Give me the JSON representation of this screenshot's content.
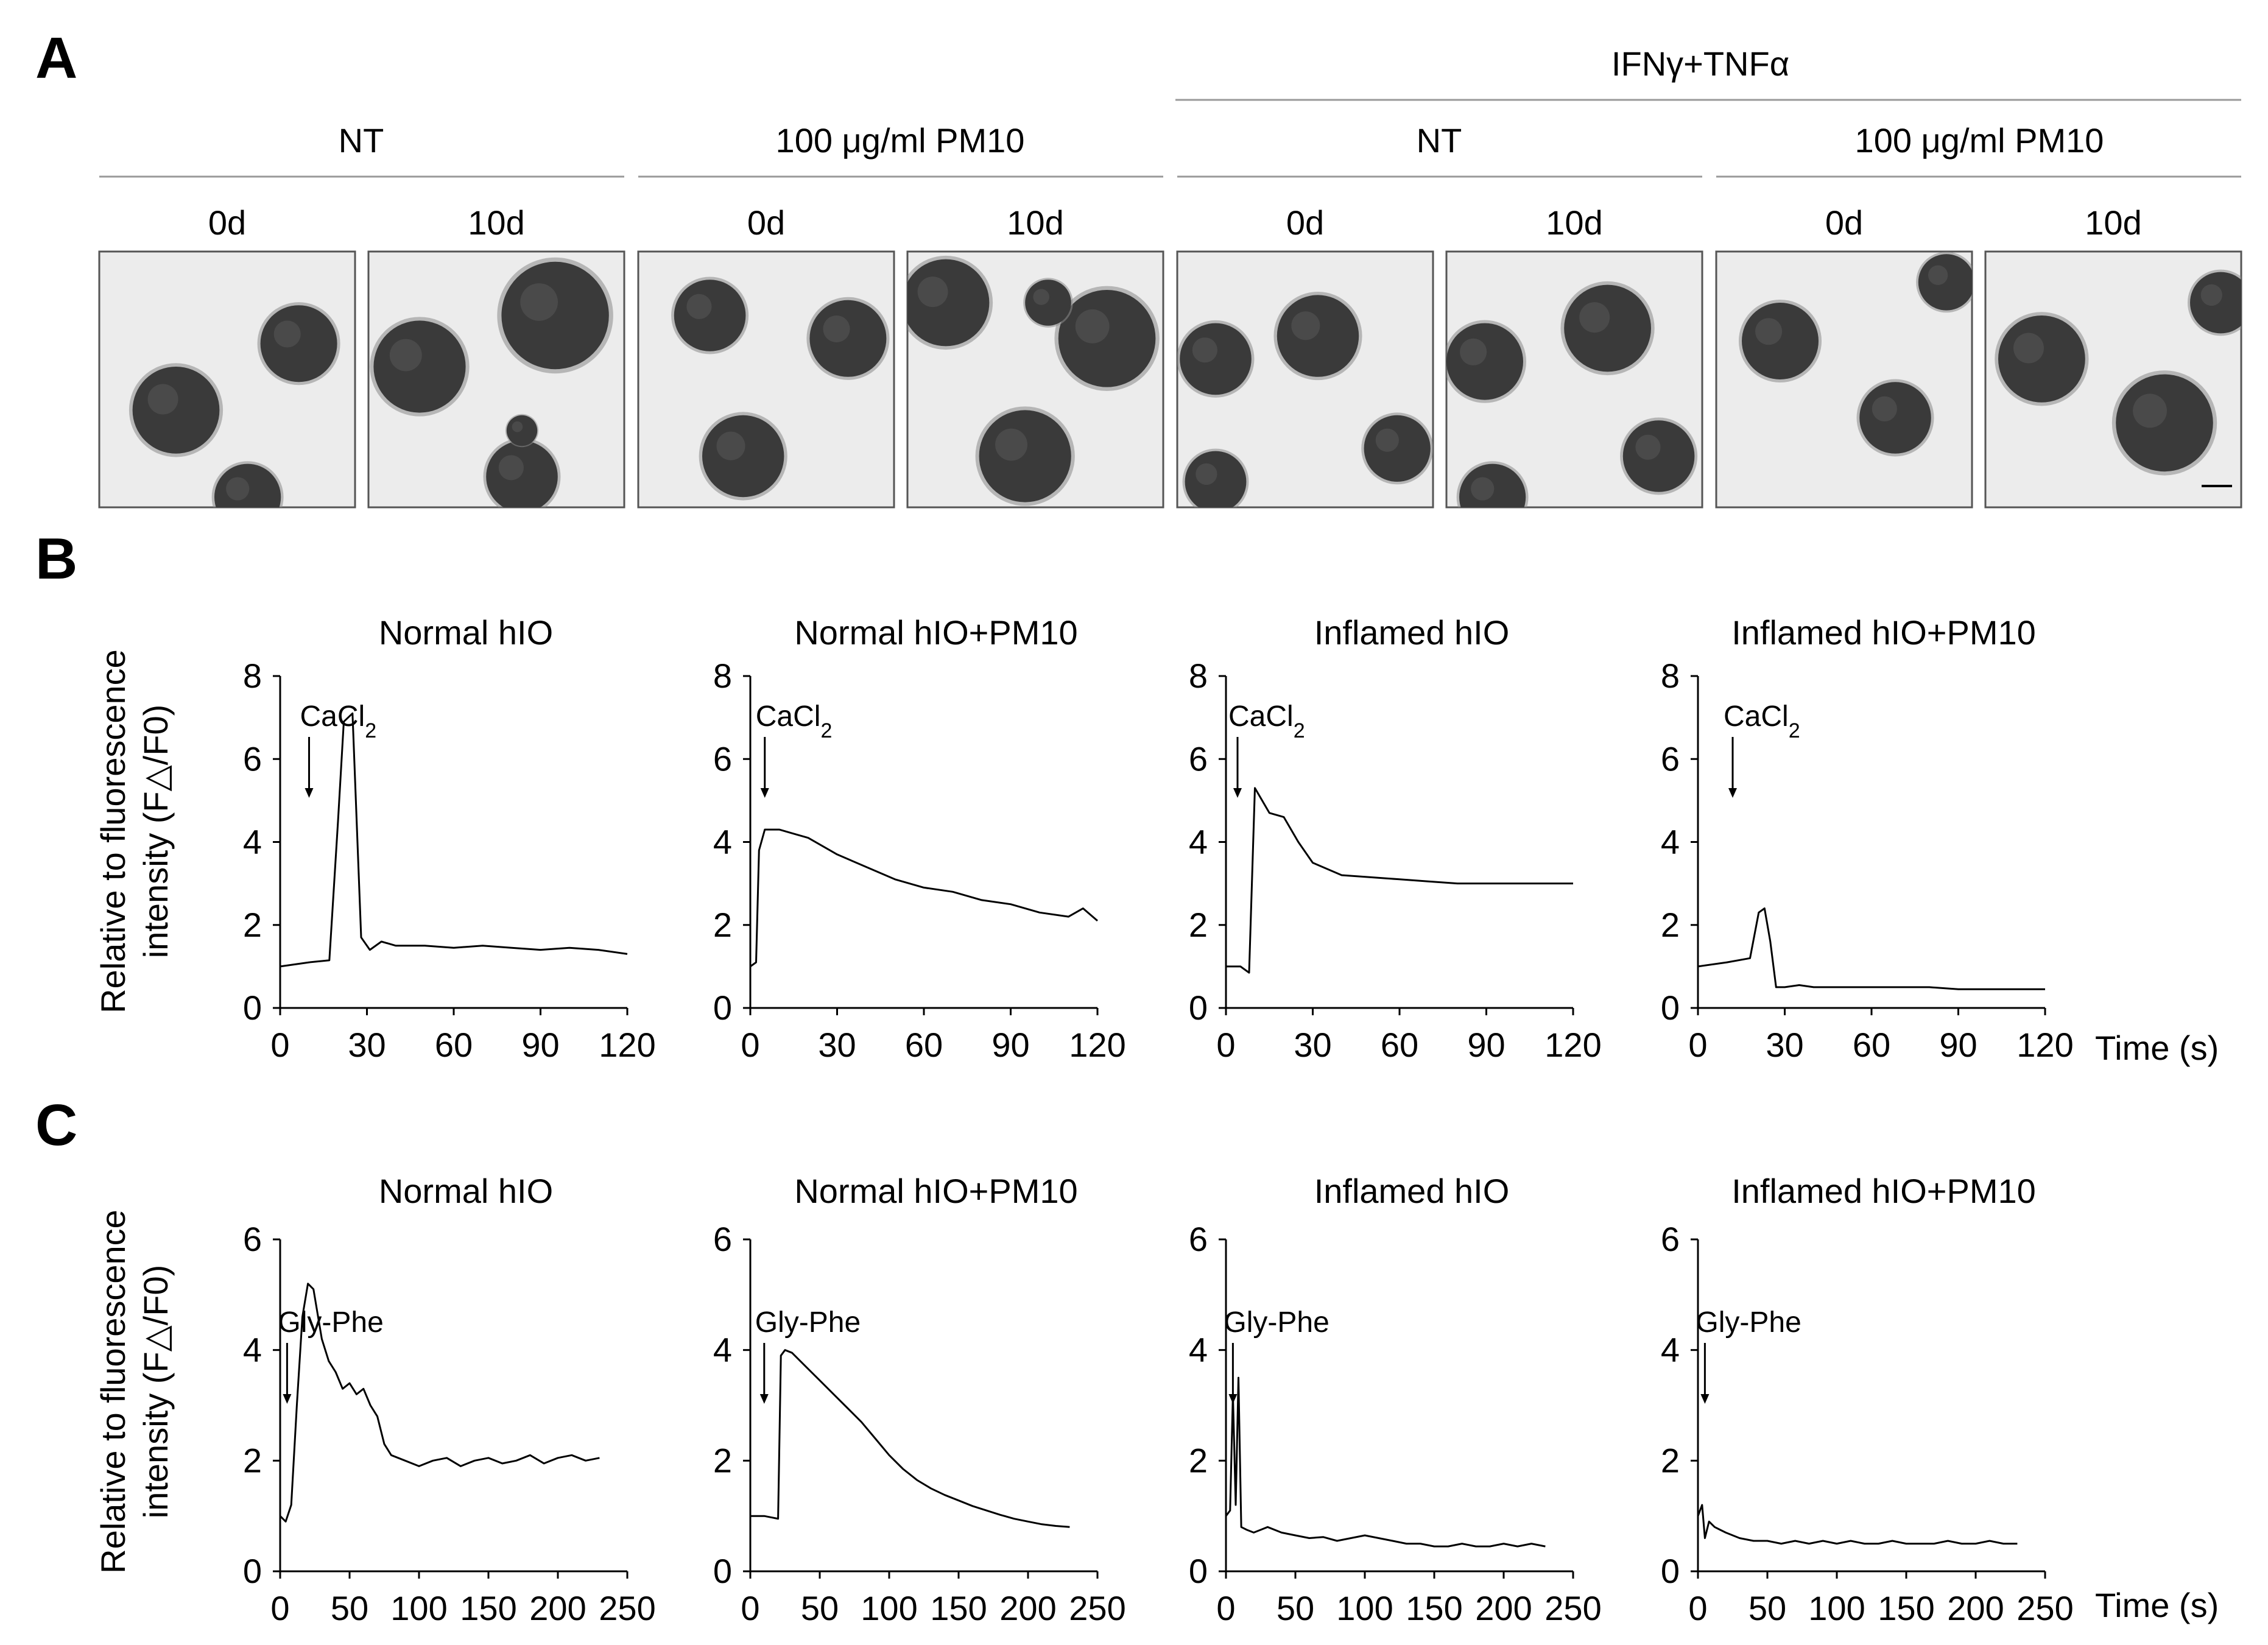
{
  "panels": {
    "A": "A",
    "B": "B",
    "C": "C"
  },
  "panel_a": {
    "treatment_group": "IFNγ+TNFα",
    "conditions": [
      "NT",
      "100 μg/ml PM10",
      "NT",
      "100 μg/ml PM10"
    ],
    "timepoints": [
      "0d",
      "10d",
      "0d",
      "10d",
      "0d",
      "10d",
      "0d",
      "10d"
    ],
    "image_background": "#ececec",
    "organoid_color": "#3a3a3a"
  },
  "axis_labels": {
    "y_line1": "Relative to fluorescence",
    "y_line2": "intensity (F△/F0)",
    "x": "Time (s)"
  },
  "chart_data": [
    {
      "type": "line",
      "panel": "B",
      "title": "Normal hIO",
      "annotation": "CaCl",
      "annotation_subscript": "2",
      "annotation_x": 10,
      "xlim": [
        0,
        120
      ],
      "ylim": [
        0,
        8
      ],
      "xticks": [
        0,
        30,
        60,
        90,
        120
      ],
      "yticks": [
        0,
        2,
        4,
        6,
        8
      ],
      "x": [
        0,
        10,
        17,
        20,
        22,
        25,
        28,
        31,
        35,
        40,
        50,
        60,
        70,
        80,
        90,
        100,
        110,
        120
      ],
      "y": [
        1.0,
        1.1,
        1.15,
        4.5,
        6.9,
        7.1,
        1.7,
        1.4,
        1.6,
        1.5,
        1.5,
        1.45,
        1.5,
        1.45,
        1.4,
        1.45,
        1.4,
        1.3
      ]
    },
    {
      "type": "line",
      "panel": "B",
      "title": "Normal hIO+PM10",
      "annotation": "CaCl",
      "annotation_subscript": "2",
      "annotation_x": 5,
      "xlim": [
        0,
        120
      ],
      "ylim": [
        0,
        8
      ],
      "xticks": [
        0,
        30,
        60,
        90,
        120
      ],
      "yticks": [
        0,
        2,
        4,
        6,
        8
      ],
      "x": [
        0,
        2,
        3,
        5,
        10,
        15,
        20,
        30,
        40,
        50,
        60,
        70,
        80,
        90,
        100,
        110,
        115,
        120
      ],
      "y": [
        1.0,
        1.1,
        3.8,
        4.3,
        4.3,
        4.2,
        4.1,
        3.7,
        3.4,
        3.1,
        2.9,
        2.8,
        2.6,
        2.5,
        2.3,
        2.2,
        2.4,
        2.1
      ]
    },
    {
      "type": "line",
      "panel": "B",
      "title": "Inflamed hIO",
      "annotation": "CaCl",
      "annotation_subscript": "2",
      "annotation_x": 4,
      "xlim": [
        0,
        120
      ],
      "ylim": [
        0,
        8
      ],
      "xticks": [
        0,
        30,
        60,
        90,
        120
      ],
      "yticks": [
        0,
        2,
        4,
        6,
        8
      ],
      "x": [
        0,
        5,
        8,
        10,
        15,
        20,
        25,
        30,
        40,
        50,
        60,
        70,
        80,
        90,
        100,
        110,
        120
      ],
      "y": [
        1.0,
        1.0,
        0.85,
        5.3,
        4.7,
        4.6,
        4.0,
        3.5,
        3.2,
        3.15,
        3.1,
        3.05,
        3.0,
        3.0,
        3.0,
        3.0,
        3.0
      ]
    },
    {
      "type": "line",
      "panel": "B",
      "title": "Inflamed hIO+PM10",
      "annotation": "CaCl",
      "annotation_subscript": "2",
      "annotation_x": 12,
      "xlim": [
        0,
        120
      ],
      "ylim": [
        0,
        8
      ],
      "xticks": [
        0,
        30,
        60,
        90,
        120
      ],
      "yticks": [
        0,
        2,
        4,
        6,
        8
      ],
      "x": [
        0,
        10,
        18,
        21,
        23,
        25,
        27,
        30,
        35,
        40,
        50,
        60,
        70,
        80,
        90,
        100,
        110,
        120
      ],
      "y": [
        1.0,
        1.1,
        1.2,
        2.3,
        2.4,
        1.6,
        0.5,
        0.5,
        0.55,
        0.5,
        0.5,
        0.5,
        0.5,
        0.5,
        0.45,
        0.45,
        0.45,
        0.45
      ]
    },
    {
      "type": "line",
      "panel": "C",
      "title": "Normal hIO",
      "annotation": "Gly-Phe",
      "annotation_subscript": "",
      "annotation_x": 5,
      "xlim": [
        0,
        250
      ],
      "ylim": [
        0,
        6
      ],
      "xticks": [
        0,
        50,
        100,
        150,
        200,
        250
      ],
      "yticks": [
        0,
        2,
        4,
        6
      ],
      "x": [
        0,
        4,
        8,
        12,
        16,
        20,
        24,
        30,
        35,
        40,
        45,
        50,
        55,
        60,
        65,
        70,
        75,
        80,
        90,
        100,
        110,
        120,
        130,
        140,
        150,
        160,
        170,
        180,
        190,
        200,
        210,
        220,
        230
      ],
      "y": [
        1.0,
        0.9,
        1.2,
        3.0,
        4.6,
        5.2,
        5.1,
        4.2,
        3.8,
        3.6,
        3.3,
        3.4,
        3.2,
        3.3,
        3.0,
        2.8,
        2.3,
        2.1,
        2.0,
        1.9,
        2.0,
        2.05,
        1.9,
        2.0,
        2.05,
        1.95,
        2.0,
        2.1,
        1.95,
        2.05,
        2.1,
        2.0,
        2.05
      ]
    },
    {
      "type": "line",
      "panel": "C",
      "title": "Normal hIO+PM10",
      "annotation": "Gly-Phe",
      "annotation_subscript": "",
      "annotation_x": 10,
      "xlim": [
        0,
        250
      ],
      "ylim": [
        0,
        6
      ],
      "xticks": [
        0,
        50,
        100,
        150,
        200,
        250
      ],
      "yticks": [
        0,
        2,
        4,
        6
      ],
      "x": [
        0,
        10,
        20,
        22,
        25,
        30,
        40,
        50,
        60,
        70,
        80,
        90,
        100,
        110,
        120,
        130,
        140,
        150,
        160,
        170,
        180,
        190,
        200,
        210,
        220,
        230
      ],
      "y": [
        1.0,
        1.0,
        0.95,
        3.9,
        4.0,
        3.95,
        3.7,
        3.45,
        3.2,
        2.95,
        2.7,
        2.4,
        2.1,
        1.85,
        1.65,
        1.5,
        1.38,
        1.28,
        1.18,
        1.1,
        1.02,
        0.95,
        0.9,
        0.85,
        0.82,
        0.8
      ]
    },
    {
      "type": "line",
      "panel": "C",
      "title": "Inflamed hIO",
      "annotation": "Gly-Phe",
      "annotation_subscript": "",
      "annotation_x": 5,
      "xlim": [
        0,
        250
      ],
      "ylim": [
        0,
        6
      ],
      "xticks": [
        0,
        50,
        100,
        150,
        200,
        250
      ],
      "yticks": [
        0,
        2,
        4,
        6
      ],
      "x": [
        0,
        3,
        5,
        7,
        9,
        11,
        15,
        20,
        25,
        30,
        40,
        50,
        60,
        70,
        80,
        90,
        100,
        110,
        120,
        130,
        140,
        150,
        160,
        170,
        180,
        190,
        200,
        210,
        220,
        230
      ],
      "y": [
        1.0,
        1.1,
        3.2,
        1.2,
        3.5,
        0.8,
        0.75,
        0.7,
        0.75,
        0.8,
        0.7,
        0.65,
        0.6,
        0.62,
        0.55,
        0.6,
        0.65,
        0.6,
        0.55,
        0.5,
        0.5,
        0.45,
        0.45,
        0.5,
        0.45,
        0.45,
        0.5,
        0.45,
        0.5,
        0.45
      ]
    },
    {
      "type": "line",
      "panel": "C",
      "title": "Inflamed hIO+PM10",
      "annotation": "Gly-Phe",
      "annotation_subscript": "",
      "annotation_x": 5,
      "xlim": [
        0,
        250
      ],
      "ylim": [
        0,
        6
      ],
      "xticks": [
        0,
        50,
        100,
        150,
        200,
        250
      ],
      "yticks": [
        0,
        2,
        4,
        6
      ],
      "x": [
        0,
        3,
        5,
        8,
        12,
        16,
        20,
        30,
        40,
        50,
        60,
        70,
        80,
        90,
        100,
        110,
        120,
        130,
        140,
        150,
        160,
        170,
        180,
        190,
        200,
        210,
        220,
        230
      ],
      "y": [
        1.0,
        1.2,
        0.6,
        0.9,
        0.8,
        0.75,
        0.7,
        0.6,
        0.55,
        0.55,
        0.5,
        0.55,
        0.5,
        0.55,
        0.5,
        0.55,
        0.5,
        0.5,
        0.55,
        0.5,
        0.5,
        0.5,
        0.55,
        0.5,
        0.5,
        0.55,
        0.5,
        0.5
      ]
    }
  ]
}
